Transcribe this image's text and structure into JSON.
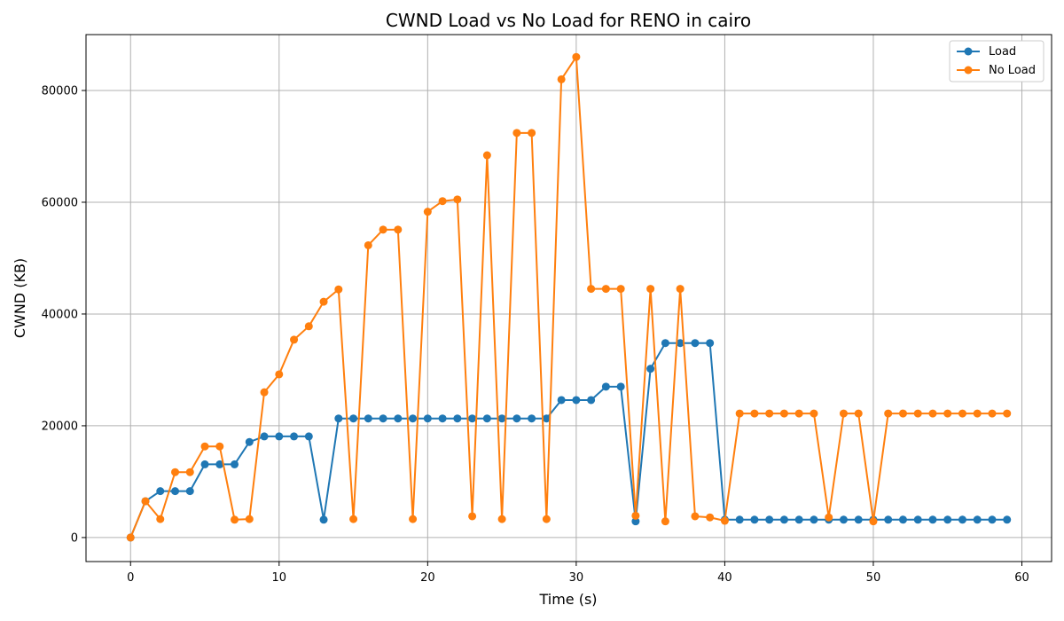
{
  "chart_data": {
    "type": "line",
    "title": "CWND Load vs No Load for RENO in cairo",
    "xlabel": "Time (s)",
    "ylabel": "CWND (KB)",
    "xlim": [
      -3,
      62
    ],
    "ylim": [
      -4300,
      90000
    ],
    "xticks": [
      0,
      10,
      20,
      30,
      40,
      50,
      60
    ],
    "yticks": [
      0,
      20000,
      40000,
      60000,
      80000
    ],
    "grid": true,
    "legend_position": "top-right",
    "x": [
      0,
      1,
      2,
      3,
      4,
      5,
      6,
      7,
      8,
      9,
      10,
      11,
      12,
      13,
      14,
      15,
      16,
      17,
      18,
      19,
      20,
      21,
      22,
      23,
      24,
      25,
      26,
      27,
      28,
      29,
      30,
      31,
      32,
      33,
      34,
      35,
      36,
      37,
      38,
      39,
      40,
      41,
      42,
      43,
      44,
      45,
      46,
      47,
      48,
      49,
      50,
      51,
      52,
      53,
      54,
      55,
      56,
      57,
      58,
      59
    ],
    "series": [
      {
        "name": "Load",
        "color": "#1f77b4",
        "values": [
          0,
          6500,
          8300,
          8300,
          8300,
          13100,
          13100,
          13100,
          17100,
          18100,
          18100,
          18100,
          18100,
          3200,
          21300,
          21300,
          21300,
          21300,
          21300,
          21300,
          21300,
          21300,
          21300,
          21300,
          21300,
          21300,
          21300,
          21300,
          21300,
          24600,
          24600,
          24600,
          27000,
          27000,
          2900,
          30200,
          34800,
          34800,
          34800,
          34800,
          3200,
          3200,
          3200,
          3200,
          3200,
          3200,
          3200,
          3200,
          3200,
          3200,
          3200,
          3200,
          3200,
          3200,
          3200,
          3200,
          3200,
          3200,
          3200,
          3200
        ]
      },
      {
        "name": "No Load",
        "color": "#ff7f0e",
        "values": [
          0,
          6500,
          3300,
          11700,
          11700,
          16300,
          16300,
          3200,
          3300,
          26000,
          29200,
          35400,
          37800,
          42200,
          44400,
          3300,
          52300,
          55100,
          55100,
          3300,
          58300,
          60200,
          60500,
          3800,
          68400,
          3300,
          72400,
          72400,
          3300,
          82000,
          86000,
          44500,
          44500,
          44500,
          3900,
          44500,
          2900,
          44500,
          3800,
          3600,
          3000,
          22200,
          22200,
          22200,
          22200,
          22200,
          22200,
          3600,
          22200,
          22200,
          2900,
          22200,
          22200,
          22200,
          22200,
          22200,
          22200,
          22200,
          22200,
          22200
        ]
      }
    ]
  }
}
